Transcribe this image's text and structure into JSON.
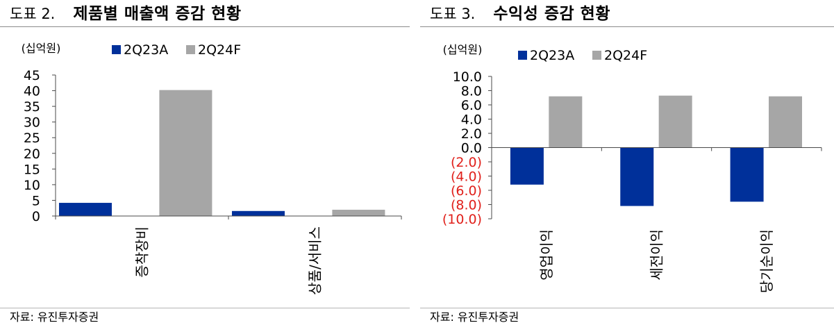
{
  "charts": [
    {
      "figure_number": "도표 2.",
      "title": "제품별 매출액 증감 현황",
      "source": "자료: 유진투자증권",
      "chart_data": {
        "type": "bar",
        "title": "제품별 매출액 증감 현황",
        "unit_label": "(십억원)",
        "categories": [
          "증착장비",
          "상품/서비스"
        ],
        "series": [
          {
            "name": "2Q23A",
            "values": [
              4.2,
              1.6
            ]
          },
          {
            "name": "2Q24F",
            "values": [
              40.2,
              2.0
            ]
          }
        ],
        "ylim": [
          0,
          45
        ],
        "yticks": [
          0,
          5,
          10,
          15,
          20,
          25,
          30,
          35,
          40,
          45
        ],
        "ytick_labels": [
          "0",
          "5",
          "10",
          "15",
          "20",
          "25",
          "30",
          "35",
          "40",
          "45"
        ],
        "legend_position": "top",
        "grid": false
      }
    },
    {
      "figure_number": "도표 3.",
      "title": "수익성 증감 현황",
      "source": "자료: 유진투자증권",
      "chart_data": {
        "type": "bar",
        "title": "수익성 증감 현황",
        "unit_label": "(십억원)",
        "categories": [
          "영업이익",
          "세전이익",
          "당기순이익"
        ],
        "series": [
          {
            "name": "2Q23A",
            "values": [
              -5.2,
              -8.2,
              -7.6
            ]
          },
          {
            "name": "2Q24F",
            "values": [
              7.2,
              7.3,
              7.2
            ]
          }
        ],
        "ylim": [
          -10,
          10
        ],
        "yticks": [
          10,
          8,
          6,
          4,
          2,
          0,
          -2,
          -4,
          -6,
          -8,
          -10
        ],
        "ytick_labels": [
          "10.0",
          "8.0",
          "6.0",
          "4.0",
          "2.0",
          "0.0",
          "(2.0)",
          "(4.0)",
          "(6.0)",
          "(8.0)",
          "(10.0)"
        ],
        "legend_position": "top",
        "grid": false
      }
    }
  ],
  "colors": {
    "series_2q23a": "#00309a",
    "series_2q24f": "#a6a6a6",
    "negative_tick": "#e0201b",
    "axis": "#4a4a4a"
  }
}
